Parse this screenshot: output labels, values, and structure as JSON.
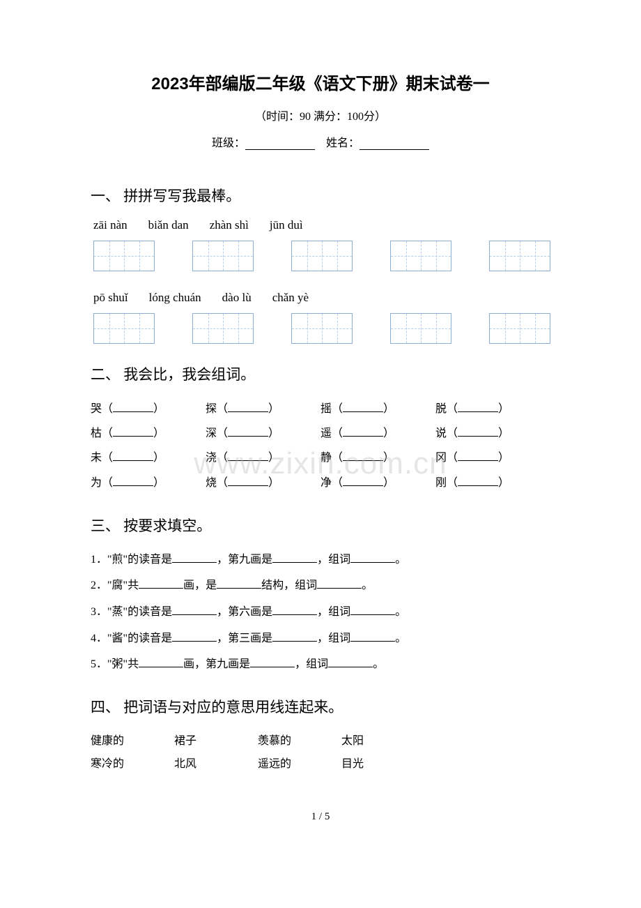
{
  "title": "2023年部编版二年级《语文下册》期末试卷一",
  "subtitle": "（时间：90   满分：100分）",
  "info": {
    "class_label": "班级：",
    "name_label": "姓名："
  },
  "watermark": "www.zixin.com.cn",
  "page_num": "1 / 5",
  "section1": {
    "title": "一、 拼拼写写我最棒。",
    "row1": [
      "zāi nàn",
      "biǎn dan",
      "zhàn shì",
      "jūn duì"
    ],
    "row2": [
      "pō shuǐ",
      "lóng chuán",
      "dào lù",
      "chǎn yè"
    ]
  },
  "section2": {
    "title": "二、 我会比，我会组词。",
    "rows": [
      [
        "哭（",
        "探（",
        "摇（",
        "脱（"
      ],
      [
        "枯（",
        "深（",
        "遥（",
        "说（"
      ],
      [
        "未（",
        "浇（",
        "静（",
        "冈（"
      ],
      [
        "为（",
        "烧（",
        "净（",
        "刚（"
      ]
    ]
  },
  "section3": {
    "title": "三、 按要求填空。",
    "items": [
      {
        "n": "1．",
        "parts": [
          "\"煎\"的读音是",
          "，第九画是",
          "，组词",
          "。"
        ]
      },
      {
        "n": "2．",
        "parts": [
          "\"腐\"共",
          "画，是",
          "结构，组词",
          "。"
        ]
      },
      {
        "n": "3．",
        "parts": [
          "\"蒸\"的读音是",
          "，第六画是",
          "，组词",
          "。"
        ]
      },
      {
        "n": "4．",
        "parts": [
          "\"酱\"的读音是",
          "，第三画是",
          "，组词",
          "。"
        ]
      },
      {
        "n": "5．",
        "parts": [
          "\"粥\"共",
          "画，第九画是",
          "，组词",
          "。"
        ]
      }
    ]
  },
  "section4": {
    "title": "四、 把词语与对应的意思用线连起来。",
    "rows": [
      [
        "健康的",
        "裙子",
        "羡慕的",
        "太阳"
      ],
      [
        "寒冷的",
        "北风",
        "遥远的",
        "目光"
      ]
    ]
  }
}
